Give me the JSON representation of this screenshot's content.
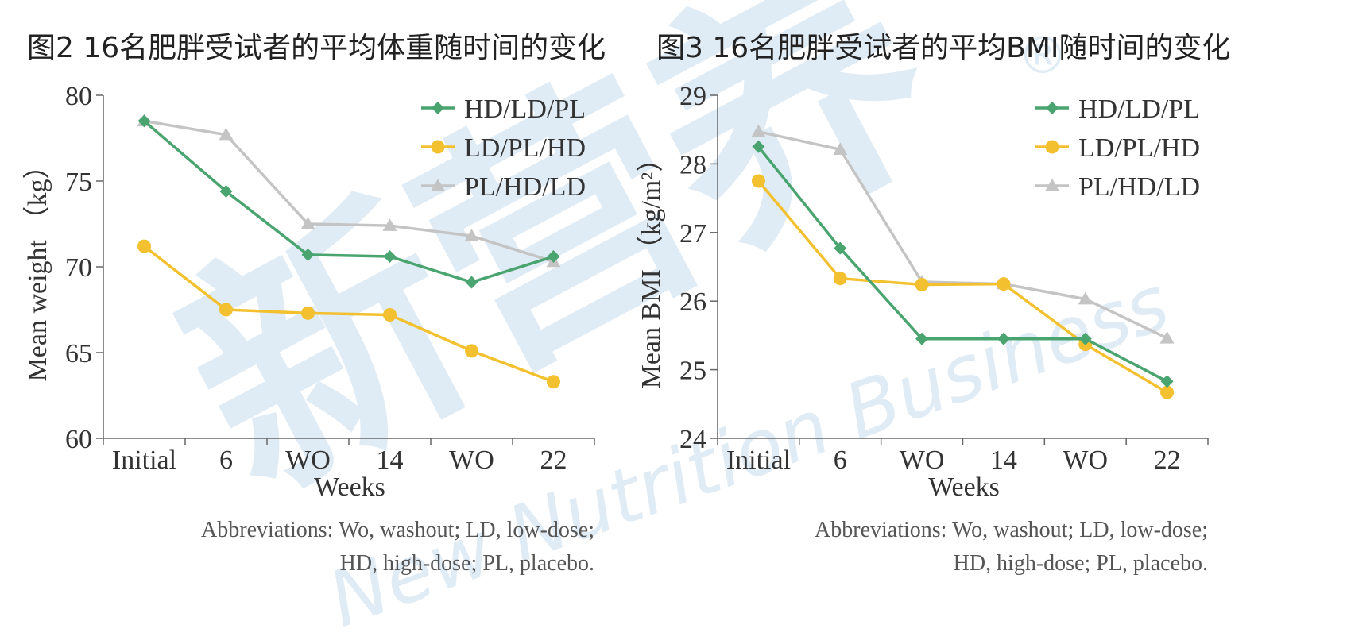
{
  "colors": {
    "HD/LD/PL": "#4aa46f",
    "LD/PL/HD": "#f3c02f",
    "PL/HD/LD": "#c4c4c4",
    "watermark": "#dce9f4"
  },
  "chart_data": [
    {
      "type": "line",
      "title": "图2 16名肥胖受试者的平均体重随时间的变化",
      "xlabel": "Weeks",
      "ylabel": "Mean weight （kg）",
      "categories": [
        "Initial",
        "6",
        "WO",
        "14",
        "WO",
        "22"
      ],
      "ylim": [
        60,
        80
      ],
      "yticks": [
        "60",
        "65",
        "70",
        "75",
        "80"
      ],
      "legend_position": "top-right",
      "grid": false,
      "series": [
        {
          "name": "HD/LD/PL",
          "marker": "diamond",
          "values": [
            78.5,
            74.4,
            70.7,
            70.6,
            69.1,
            70.6
          ]
        },
        {
          "name": "LD/PL/HD",
          "marker": "circle",
          "values": [
            71.2,
            67.5,
            67.3,
            67.2,
            65.1,
            63.3
          ]
        },
        {
          "name": "PL/HD/LD",
          "marker": "triangle",
          "values": [
            78.5,
            77.7,
            72.5,
            72.4,
            71.8,
            70.3
          ]
        }
      ],
      "note": [
        "Abbreviations: Wo, washout; LD, low-dose;",
        "HD, high-dose; PL, placebo."
      ]
    },
    {
      "type": "line",
      "title": "图3 16名肥胖受试者的平均BMI随时间的变化",
      "xlabel": "Weeks",
      "ylabel": "Mean BMI （kg/m²）",
      "categories": [
        "Initial",
        "6",
        "WO",
        "14",
        "WO",
        "22"
      ],
      "ylim": [
        24,
        29
      ],
      "yticks": [
        "24",
        "25",
        "26",
        "27",
        "28",
        "29"
      ],
      "legend_position": "top-right",
      "grid": false,
      "series": [
        {
          "name": "HD/LD/PL",
          "marker": "diamond",
          "values": [
            28.25,
            26.77,
            25.45,
            25.45,
            25.45,
            24.83
          ]
        },
        {
          "name": "LD/PL/HD",
          "marker": "circle",
          "values": [
            27.75,
            26.33,
            26.24,
            26.25,
            25.37,
            24.67
          ]
        },
        {
          "name": "PL/HD/LD",
          "marker": "triangle",
          "values": [
            28.47,
            28.21,
            26.28,
            26.25,
            26.03,
            25.46
          ]
        }
      ],
      "note": [
        "Abbreviations: Wo, washout; LD, low-dose;",
        "HD, high-dose; PL, placebo."
      ]
    }
  ],
  "watermark": {
    "brand_cn": "新营养",
    "brand_en": "New Nutrition Business",
    "registered_mark": "®"
  }
}
